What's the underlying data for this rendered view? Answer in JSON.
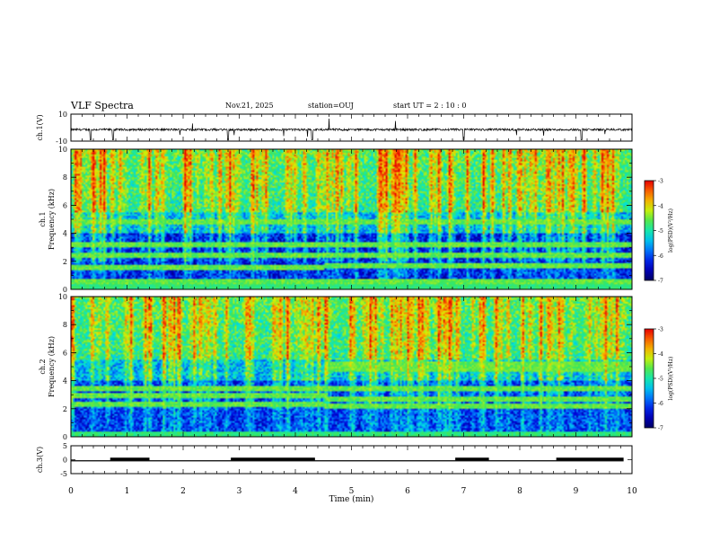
{
  "header": {
    "title": "VLF Spectra",
    "date": "Nov.21, 2025",
    "station": "station=OUJ",
    "start_time": "start  UT =   2 : 10 : 0"
  },
  "chart_data": [
    {
      "type": "line",
      "name": "ch1-waveform",
      "ylabel": "ch.1(V)",
      "ylim": [
        -10,
        10
      ],
      "yticks": [
        "10",
        "-10"
      ],
      "description_series": "noise waveform near -1 V with sparse negative spikes",
      "spikes_min": [
        0.35,
        0.75,
        2.8,
        4.3,
        7.0,
        9.1
      ],
      "color": "#000000"
    },
    {
      "type": "heatmap",
      "name": "ch1-spectrogram",
      "ylabel_line1": "ch.1",
      "ylabel_line2": "Frequency (kHz)",
      "ylim": [
        0,
        10
      ],
      "yticks": [
        "0",
        "2",
        "4",
        "6",
        "8",
        "10"
      ],
      "xlim": [
        0,
        10
      ],
      "colorbar": {
        "label": "log(PSD)(V²/Hz)",
        "range": [
          -7,
          -3
        ],
        "ticks": [
          "-3",
          "-4",
          "-5",
          "-6",
          "-7"
        ]
      },
      "band_shift_min": 4.5,
      "bands_khz_before": [
        0.6,
        1.6,
        2.5,
        3.2,
        4.9
      ],
      "bands_khz_after": [
        0.6,
        1.8,
        2.5,
        3.3,
        4.9
      ]
    },
    {
      "type": "heatmap",
      "name": "ch2-spectrogram",
      "ylabel_line1": "ch.2",
      "ylabel_line2": "Frequency (kHz)",
      "ylim": [
        0,
        10
      ],
      "yticks": [
        "0",
        "2",
        "4",
        "6",
        "8",
        "10"
      ],
      "xlim": [
        0,
        10
      ],
      "colorbar": {
        "label": "log(PSD)(V²/Hz)",
        "range": [
          -7,
          -3
        ],
        "ticks": [
          "-3",
          "-4",
          "-5",
          "-6",
          "-7"
        ]
      },
      "band_shift_min": 4.5,
      "bands_khz_before": [
        2.4,
        3.0,
        3.5
      ],
      "bands_khz_after": [
        2.2,
        2.8,
        3.5,
        4.9,
        5.3
      ]
    },
    {
      "type": "line",
      "name": "ch3-digital",
      "ylabel": "ch.3(V)",
      "ylim": [
        -5,
        5
      ],
      "yticks": [
        "5",
        "0",
        "-5"
      ],
      "segments_min": [
        [
          0.7,
          1.4
        ],
        [
          2.85,
          4.35
        ],
        [
          6.85,
          7.45
        ],
        [
          8.65,
          9.85
        ]
      ],
      "level_high": 0.4,
      "level_low": -0.4
    }
  ],
  "x_axis": {
    "label": "Time  (min)",
    "ticks": [
      "0",
      "1",
      "2",
      "3",
      "4",
      "5",
      "6",
      "7",
      "8",
      "9",
      "10"
    ]
  }
}
